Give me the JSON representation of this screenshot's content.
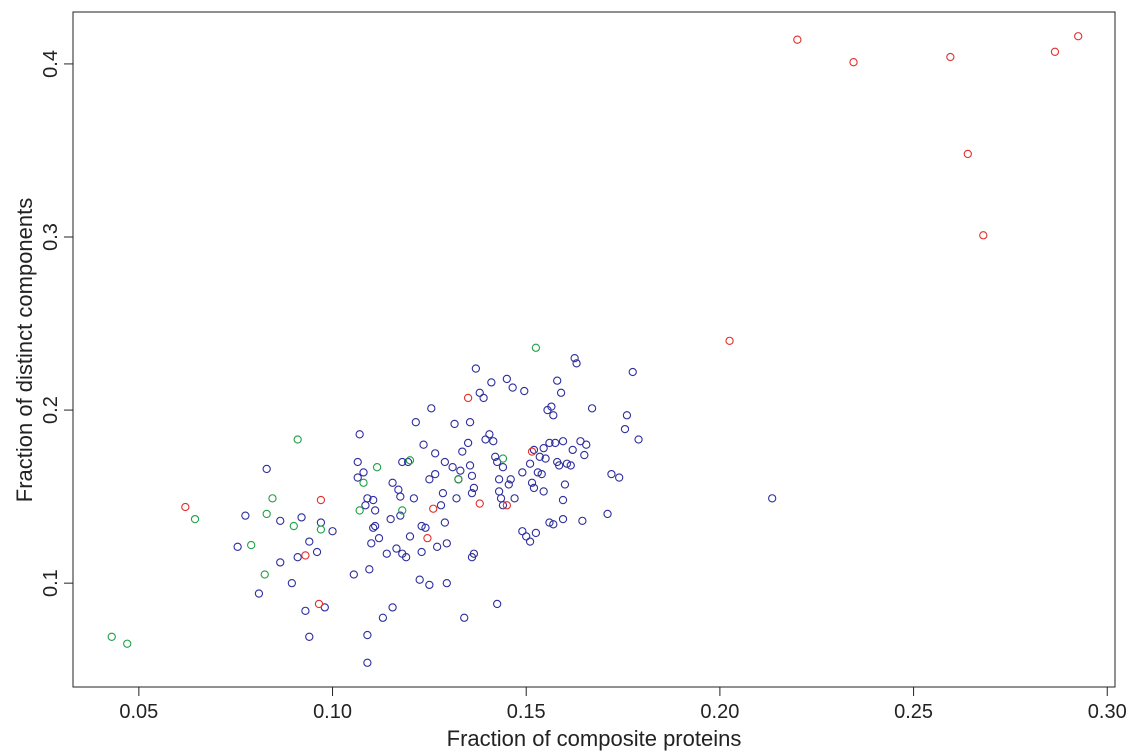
{
  "chart_data": {
    "type": "scatter",
    "title": "",
    "xlabel": "Fraction of composite proteins",
    "ylabel": "Fraction of distinct components",
    "xlim": [
      0.033,
      0.302
    ],
    "ylim": [
      0.04,
      0.43
    ],
    "x_ticks": [
      {
        "value": 0.05,
        "label": "0.05"
      },
      {
        "value": 0.1,
        "label": "0.10"
      },
      {
        "value": 0.15,
        "label": "0.15"
      },
      {
        "value": 0.2,
        "label": "0.20"
      },
      {
        "value": 0.25,
        "label": "0.25"
      },
      {
        "value": 0.3,
        "label": "0.30"
      }
    ],
    "y_ticks": [
      {
        "value": 0.1,
        "label": "0.1"
      },
      {
        "value": 0.2,
        "label": "0.2"
      },
      {
        "value": 0.3,
        "label": "0.3"
      },
      {
        "value": 0.4,
        "label": "0.4"
      }
    ],
    "grid": false,
    "series": [
      {
        "color": "#2e2e9e",
        "points": [
          [
            0.0755,
            0.121
          ],
          [
            0.0775,
            0.139
          ],
          [
            0.081,
            0.094
          ],
          [
            0.083,
            0.166
          ],
          [
            0.0865,
            0.136
          ],
          [
            0.0865,
            0.112
          ],
          [
            0.0895,
            0.1
          ],
          [
            0.091,
            0.115
          ],
          [
            0.092,
            0.138
          ],
          [
            0.093,
            0.084
          ],
          [
            0.094,
            0.124
          ],
          [
            0.094,
            0.069
          ],
          [
            0.096,
            0.118
          ],
          [
            0.097,
            0.135
          ],
          [
            0.098,
            0.086
          ],
          [
            0.1,
            0.13
          ],
          [
            0.1055,
            0.105
          ],
          [
            0.1065,
            0.161
          ],
          [
            0.1065,
            0.17
          ],
          [
            0.107,
            0.186
          ],
          [
            0.108,
            0.164
          ],
          [
            0.1085,
            0.145
          ],
          [
            0.109,
            0.149
          ],
          [
            0.109,
            0.07
          ],
          [
            0.109,
            0.054
          ],
          [
            0.1095,
            0.108
          ],
          [
            0.11,
            0.123
          ],
          [
            0.1105,
            0.132
          ],
          [
            0.1105,
            0.148
          ],
          [
            0.111,
            0.133
          ],
          [
            0.111,
            0.142
          ],
          [
            0.112,
            0.126
          ],
          [
            0.113,
            0.08
          ],
          [
            0.114,
            0.117
          ],
          [
            0.115,
            0.137
          ],
          [
            0.1155,
            0.086
          ],
          [
            0.1155,
            0.158
          ],
          [
            0.1165,
            0.12
          ],
          [
            0.117,
            0.154
          ],
          [
            0.1175,
            0.15
          ],
          [
            0.1175,
            0.139
          ],
          [
            0.118,
            0.117
          ],
          [
            0.118,
            0.17
          ],
          [
            0.119,
            0.115
          ],
          [
            0.1195,
            0.17
          ],
          [
            0.12,
            0.127
          ],
          [
            0.121,
            0.149
          ],
          [
            0.1215,
            0.193
          ],
          [
            0.1225,
            0.102
          ],
          [
            0.123,
            0.133
          ],
          [
            0.123,
            0.118
          ],
          [
            0.1235,
            0.18
          ],
          [
            0.124,
            0.132
          ],
          [
            0.125,
            0.16
          ],
          [
            0.125,
            0.099
          ],
          [
            0.1255,
            0.201
          ],
          [
            0.1265,
            0.175
          ],
          [
            0.1265,
            0.163
          ],
          [
            0.127,
            0.121
          ],
          [
            0.128,
            0.145
          ],
          [
            0.1285,
            0.152
          ],
          [
            0.129,
            0.17
          ],
          [
            0.129,
            0.135
          ],
          [
            0.1295,
            0.1
          ],
          [
            0.1295,
            0.123
          ],
          [
            0.131,
            0.167
          ],
          [
            0.1315,
            0.192
          ],
          [
            0.132,
            0.149
          ],
          [
            0.1325,
            0.16
          ],
          [
            0.133,
            0.165
          ],
          [
            0.1335,
            0.176
          ],
          [
            0.134,
            0.08
          ],
          [
            0.135,
            0.181
          ],
          [
            0.1355,
            0.193
          ],
          [
            0.1355,
            0.168
          ],
          [
            0.136,
            0.115
          ],
          [
            0.136,
            0.162
          ],
          [
            0.136,
            0.152
          ],
          [
            0.1365,
            0.117
          ],
          [
            0.1365,
            0.155
          ],
          [
            0.137,
            0.224
          ],
          [
            0.138,
            0.21
          ],
          [
            0.139,
            0.207
          ],
          [
            0.1395,
            0.183
          ],
          [
            0.1405,
            0.186
          ],
          [
            0.141,
            0.216
          ],
          [
            0.1415,
            0.182
          ],
          [
            0.142,
            0.173
          ],
          [
            0.1425,
            0.17
          ],
          [
            0.1425,
            0.088
          ],
          [
            0.143,
            0.16
          ],
          [
            0.143,
            0.153
          ],
          [
            0.1435,
            0.149
          ],
          [
            0.144,
            0.167
          ],
          [
            0.144,
            0.145
          ],
          [
            0.145,
            0.218
          ],
          [
            0.1455,
            0.157
          ],
          [
            0.146,
            0.16
          ],
          [
            0.1465,
            0.213
          ],
          [
            0.147,
            0.149
          ],
          [
            0.149,
            0.164
          ],
          [
            0.149,
            0.13
          ],
          [
            0.1495,
            0.211
          ],
          [
            0.15,
            0.127
          ],
          [
            0.151,
            0.169
          ],
          [
            0.1515,
            0.158
          ],
          [
            0.151,
            0.124
          ],
          [
            0.152,
            0.155
          ],
          [
            0.152,
            0.177
          ],
          [
            0.1525,
            0.129
          ],
          [
            0.153,
            0.164
          ],
          [
            0.1535,
            0.173
          ],
          [
            0.154,
            0.163
          ],
          [
            0.1545,
            0.178
          ],
          [
            0.1545,
            0.153
          ],
          [
            0.155,
            0.172
          ],
          [
            0.1555,
            0.2
          ],
          [
            0.156,
            0.135
          ],
          [
            0.156,
            0.181
          ],
          [
            0.1565,
            0.202
          ],
          [
            0.157,
            0.134
          ],
          [
            0.157,
            0.197
          ],
          [
            0.1575,
            0.181
          ],
          [
            0.158,
            0.17
          ],
          [
            0.158,
            0.217
          ],
          [
            0.1585,
            0.168
          ],
          [
            0.159,
            0.21
          ],
          [
            0.1595,
            0.137
          ],
          [
            0.1595,
            0.182
          ],
          [
            0.1595,
            0.148
          ],
          [
            0.16,
            0.157
          ],
          [
            0.1605,
            0.169
          ],
          [
            0.1615,
            0.168
          ],
          [
            0.162,
            0.177
          ],
          [
            0.1625,
            0.23
          ],
          [
            0.163,
            0.227
          ],
          [
            0.164,
            0.182
          ],
          [
            0.1645,
            0.136
          ],
          [
            0.165,
            0.174
          ],
          [
            0.1655,
            0.18
          ],
          [
            0.167,
            0.201
          ],
          [
            0.171,
            0.14
          ],
          [
            0.172,
            0.163
          ],
          [
            0.174,
            0.161
          ],
          [
            0.1755,
            0.189
          ],
          [
            0.176,
            0.197
          ],
          [
            0.1775,
            0.222
          ],
          [
            0.179,
            0.183
          ],
          [
            0.2135,
            0.149
          ]
        ]
      },
      {
        "color": "#e0302c",
        "points": [
          [
            0.062,
            0.144
          ],
          [
            0.093,
            0.116
          ],
          [
            0.0965,
            0.088
          ],
          [
            0.097,
            0.148
          ],
          [
            0.1245,
            0.126
          ],
          [
            0.126,
            0.143
          ],
          [
            0.1325,
            0.16
          ],
          [
            0.135,
            0.207
          ],
          [
            0.138,
            0.146
          ],
          [
            0.145,
            0.145
          ],
          [
            0.1515,
            0.176
          ],
          [
            0.2025,
            0.24
          ],
          [
            0.22,
            0.414
          ],
          [
            0.2345,
            0.401
          ],
          [
            0.2595,
            0.404
          ],
          [
            0.264,
            0.348
          ],
          [
            0.268,
            0.301
          ],
          [
            0.2865,
            0.407
          ],
          [
            0.2925,
            0.416
          ]
        ]
      },
      {
        "color": "#20a048",
        "points": [
          [
            0.043,
            0.069
          ],
          [
            0.047,
            0.065
          ],
          [
            0.0645,
            0.137
          ],
          [
            0.079,
            0.122
          ],
          [
            0.0825,
            0.105
          ],
          [
            0.083,
            0.14
          ],
          [
            0.0845,
            0.149
          ],
          [
            0.09,
            0.133
          ],
          [
            0.091,
            0.183
          ],
          [
            0.097,
            0.131
          ],
          [
            0.107,
            0.142
          ],
          [
            0.108,
            0.158
          ],
          [
            0.1115,
            0.167
          ],
          [
            0.118,
            0.142
          ],
          [
            0.12,
            0.171
          ],
          [
            0.1325,
            0.16
          ],
          [
            0.144,
            0.172
          ],
          [
            0.1525,
            0.236
          ]
        ]
      }
    ]
  }
}
